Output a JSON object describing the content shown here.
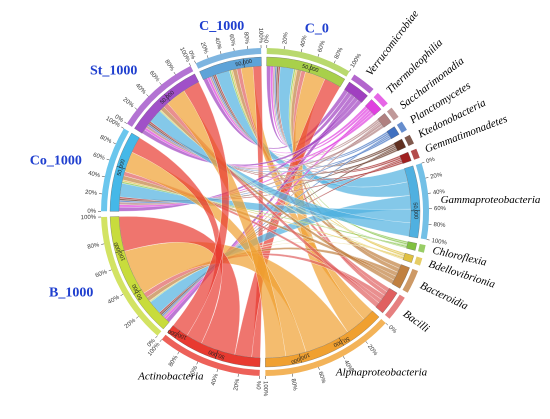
{
  "chart_data": {
    "type": "chord",
    "segments": [
      {
        "name": "C_1000",
        "color": "#5ea3d8",
        "values": [
          5000,
          3000,
          2000,
          2000,
          2000,
          2000,
          16000,
          2000,
          2000,
          5000,
          5000,
          14000,
          10000
        ]
      },
      {
        "name": "C_0",
        "color": "#a8d04a",
        "values": [
          5000,
          3000,
          2000,
          2000,
          2000,
          2000,
          16000,
          2000,
          2000,
          5000,
          5000,
          24000,
          20000
        ]
      },
      {
        "name": "Verrucomicrobiae",
        "color": "#a040c0"
      },
      {
        "name": "Thermoleophilia",
        "color": "#e040e0"
      },
      {
        "name": "Saccharimonadia",
        "color": "#b08080"
      },
      {
        "name": "Planctomycetes",
        "color": "#4070c0"
      },
      {
        "name": "Ktedonobacteria",
        "color": "#603020"
      },
      {
        "name": "Gemmatimonadetes",
        "color": "#a02020"
      },
      {
        "name": "Gammaproteobacteria",
        "color": "#50b0e0"
      },
      {
        "name": "Chloroflexia",
        "color": "#80c040"
      },
      {
        "name": "Bdellovibrionia",
        "color": "#e0c040"
      },
      {
        "name": "Bacteroidia",
        "color": "#c08040"
      },
      {
        "name": "Bacilli",
        "color": "#e06060"
      },
      {
        "name": "Alphaproteobacteria",
        "color": "#f0a030"
      },
      {
        "name": "Actinobacteria",
        "color": "#e83a30"
      },
      {
        "name": "B_1000",
        "color": "#c8dc3c",
        "values": [
          5000,
          3000,
          2000,
          2000,
          2000,
          2000,
          16000,
          1000,
          1000,
          5000,
          6000,
          54000,
          41000
        ]
      },
      {
        "name": "Co_1000",
        "color": "#45b8e8",
        "values": [
          5000,
          3000,
          3000,
          2000,
          2000,
          2000,
          16000,
          2000,
          2000,
          5000,
          5000,
          24000,
          19000
        ]
      },
      {
        "name": "St_1000",
        "color": "#a050c8",
        "values": [
          5000,
          3000,
          3000,
          2000,
          2000,
          2000,
          16000,
          1000,
          1000,
          5000,
          6000,
          24000,
          20000
        ]
      }
    ],
    "percent_ticks": [
      {
        "value": 0,
        "label": "0%"
      },
      {
        "value": 20,
        "label": "20%"
      },
      {
        "value": 40,
        "label": "40%"
      },
      {
        "value": 60,
        "label": "60%"
      },
      {
        "value": 80,
        "label": "80%"
      },
      {
        "value": 100,
        "label": "100%"
      }
    ],
    "scale_ticks": [
      {
        "value": 50000,
        "label": "50,000"
      },
      {
        "value": 100000,
        "label": "100,000"
      }
    ]
  }
}
